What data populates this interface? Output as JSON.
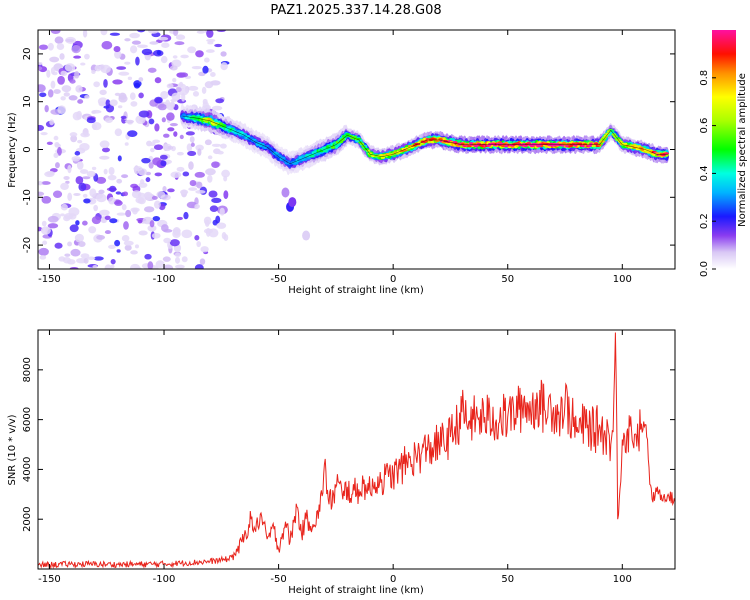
{
  "figure_title": "PAZ1.2025.337.14.28.G08",
  "chart_data": [
    {
      "type": "heatmap",
      "title": "PAZ1.2025.337.14.28.G08",
      "xlabel": "Height of straight line (km)",
      "ylabel": "Frequency (Hz)",
      "xlim": [
        -155,
        123
      ],
      "ylim": [
        -25,
        25
      ],
      "xticks": [
        -150,
        -100,
        -50,
        0,
        50,
        100
      ],
      "yticks": [
        -20,
        -10,
        0,
        10,
        20
      ],
      "colorbar": {
        "label": "Normalized spectral amplitude",
        "range": [
          0,
          1
        ],
        "ticks": [
          0.0,
          0.2,
          0.4,
          0.6,
          0.8
        ]
      },
      "noise_region_x": [
        -155,
        -73
      ],
      "ridge": {
        "x": [
          -92,
          -85,
          -80,
          -75,
          -70,
          -65,
          -60,
          -55,
          -50,
          -45,
          -40,
          -35,
          -30,
          -25,
          -20,
          -15,
          -10,
          -5,
          0,
          5,
          10,
          15,
          20,
          30,
          40,
          50,
          60,
          70,
          80,
          90,
          95,
          100,
          110,
          115,
          120
        ],
        "freq": [
          7,
          6.5,
          6,
          5,
          4,
          3,
          1.5,
          0.5,
          -1.5,
          -3,
          -2,
          -1,
          0,
          1,
          3,
          2,
          -1,
          -1.5,
          -1,
          0,
          1,
          2,
          2,
          1,
          1,
          1,
          1,
          1,
          1,
          1,
          4,
          1,
          0,
          -1,
          -1
        ],
        "amplitude": [
          0.3,
          0.5,
          0.7,
          0.5,
          0.4,
          0.35,
          0.3,
          0.3,
          0.3,
          0.3,
          0.35,
          0.4,
          0.5,
          0.5,
          0.5,
          0.55,
          0.6,
          0.7,
          0.7,
          0.75,
          0.8,
          0.85,
          0.9,
          0.95,
          1.0,
          1.0,
          1.0,
          1.0,
          0.95,
          0.9,
          0.5,
          0.7,
          0.85,
          0.9,
          0.9
        ]
      }
    },
    {
      "type": "line",
      "xlabel": "Height of straight line (km)",
      "ylabel": "SNR (10 * v/v)",
      "xlim": [
        -155,
        123
      ],
      "ylim": [
        0,
        9600
      ],
      "xticks": [
        -150,
        -100,
        -50,
        0,
        50,
        100
      ],
      "yticks": [
        2000,
        4000,
        6000,
        8000
      ],
      "color": "#e8241c",
      "series": [
        {
          "name": "SNR",
          "x": [
            -155,
            -140,
            -120,
            -100,
            -80,
            -72,
            -68,
            -65,
            -62,
            -60,
            -58,
            -55,
            -52,
            -50,
            -47,
            -45,
            -42,
            -40,
            -38,
            -35,
            -32,
            -30,
            -28,
            -26,
            -24,
            -22,
            -20,
            -18,
            -15,
            -12,
            -10,
            -8,
            -5,
            -2,
            0,
            3,
            6,
            10,
            15,
            20,
            25,
            28,
            30,
            32,
            35,
            40,
            45,
            50,
            55,
            58,
            60,
            63,
            66,
            70,
            72,
            75,
            78,
            80,
            82,
            85,
            88,
            90,
            92,
            94,
            95,
            96,
            97,
            98,
            100,
            102,
            104,
            106,
            108,
            110,
            111,
            112,
            113,
            115,
            118,
            120,
            123
          ],
          "y": [
            150,
            200,
            180,
            200,
            300,
            400,
            700,
            1300,
            2000,
            1500,
            2200,
            1200,
            1600,
            800,
            1900,
            1100,
            2500,
            1400,
            2000,
            1800,
            2300,
            4200,
            2600,
            3000,
            3500,
            2800,
            3300,
            3000,
            3200,
            3400,
            3100,
            3500,
            3600,
            3700,
            3800,
            4000,
            4300,
            4500,
            4800,
            5000,
            5300,
            5800,
            6300,
            5900,
            6000,
            6100,
            6000,
            6100,
            6400,
            6700,
            6300,
            6800,
            6400,
            6500,
            6200,
            6700,
            6000,
            5500,
            5700,
            5800,
            5500,
            5800,
            5400,
            5500,
            5000,
            5500,
            9500,
            2000,
            5200,
            5500,
            5600,
            5400,
            5600,
            5800,
            5200,
            3400,
            2800,
            3100,
            2900,
            3000,
            2700
          ]
        }
      ]
    }
  ]
}
